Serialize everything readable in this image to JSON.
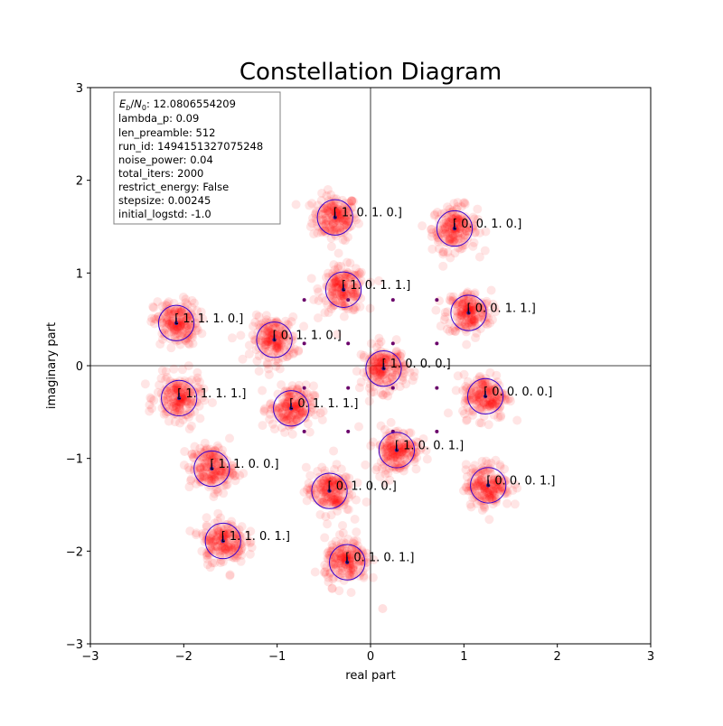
{
  "chart_data": {
    "type": "scatter",
    "title": "Constellation Diagram",
    "xlabel": "real part",
    "ylabel": "imaginary part",
    "xlim": [
      -3,
      3
    ],
    "ylim": [
      -3,
      3
    ],
    "xticks": [
      "−3",
      "−2",
      "−1",
      "0",
      "1",
      "2",
      "3"
    ],
    "yticks": [
      "−3",
      "−2",
      "−1",
      "0",
      "1",
      "2",
      "3"
    ],
    "grid": false,
    "info_box": {
      "ebn0_label": "E_b/N_0: ",
      "ebn0_value": "12.0806554209",
      "lines": [
        "lambda_p: 0.09",
        "len_preamble: 512",
        "run_id: 1494151327075248",
        "noise_power: 0.04",
        "total_iters: 2000",
        "restrict_energy: False",
        "stepsize: 0.00245",
        "initial_logstd: -1.0"
      ]
    },
    "colors": {
      "samples": "#ff0000",
      "circle": "#3a00cc",
      "centroid": "#3a1a9a",
      "reference": "#6a006a",
      "axis_lines": "#808080"
    },
    "clusters": [
      {
        "label": "[ 1.  0.  1.  0.]",
        "x": -0.38,
        "y": 1.6
      },
      {
        "label": "[ 0.  0.  1.  0.]",
        "x": 0.9,
        "y": 1.48
      },
      {
        "label": "[ 1.  0.  1.  1.]",
        "x": -0.29,
        "y": 0.82
      },
      {
        "label": "[ 0.  0.  1.  1.]",
        "x": 1.05,
        "y": 0.57
      },
      {
        "label": "[ 1.  1.  1.  0.]",
        "x": -2.08,
        "y": 0.46
      },
      {
        "label": "[ 0.  1.  1.  0.]",
        "x": -1.03,
        "y": 0.28
      },
      {
        "label": "[ 1.  0.  0.  0.]",
        "x": 0.14,
        "y": -0.03
      },
      {
        "label": "[ 1.  1.  1.  1.]",
        "x": -2.05,
        "y": -0.35
      },
      {
        "label": "[ 0.  1.  1.  1.]",
        "x": -0.85,
        "y": -0.46
      },
      {
        "label": "[ 0.  0.  0.  0.]",
        "x": 1.23,
        "y": -0.33
      },
      {
        "label": "[ 1.  0.  0.  1.]",
        "x": 0.28,
        "y": -0.91
      },
      {
        "label": "[ 1.  1.  0.  0.]",
        "x": -1.7,
        "y": -1.11
      },
      {
        "label": "[ 0.  1.  0.  0.]",
        "x": -0.44,
        "y": -1.35
      },
      {
        "label": "[ 0.  0.  0.  1.]",
        "x": 1.26,
        "y": -1.29
      },
      {
        "label": "[ 1.  1.  0.  1.]",
        "x": -1.58,
        "y": -1.89
      },
      {
        "label": "[ 0.  1.  0.  1.]",
        "x": -0.25,
        "y": -2.12
      }
    ],
    "reference_points": [
      {
        "x": -0.71,
        "y": 0.71
      },
      {
        "x": -0.24,
        "y": 0.71
      },
      {
        "x": 0.24,
        "y": 0.71
      },
      {
        "x": 0.71,
        "y": 0.71
      },
      {
        "x": -0.71,
        "y": 0.24
      },
      {
        "x": -0.24,
        "y": 0.24
      },
      {
        "x": 0.24,
        "y": 0.24
      },
      {
        "x": 0.71,
        "y": 0.24
      },
      {
        "x": -0.71,
        "y": -0.24
      },
      {
        "x": -0.24,
        "y": -0.24
      },
      {
        "x": 0.24,
        "y": -0.24
      },
      {
        "x": 0.71,
        "y": -0.24
      },
      {
        "x": -0.71,
        "y": -0.71
      },
      {
        "x": -0.24,
        "y": -0.71
      },
      {
        "x": 0.24,
        "y": -0.71
      },
      {
        "x": 0.71,
        "y": -0.71
      }
    ],
    "outlier_points": [
      {
        "x": 0.13,
        "y": -2.62
      }
    ]
  }
}
